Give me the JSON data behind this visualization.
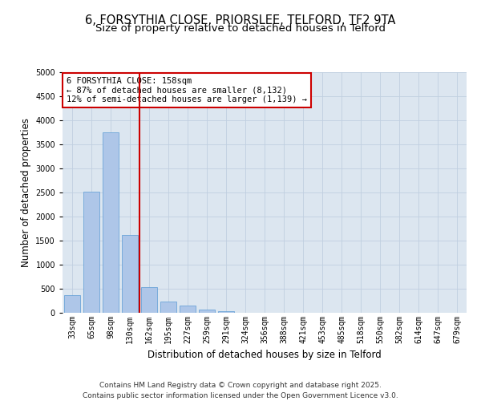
{
  "title_line1": "6, FORSYTHIA CLOSE, PRIORSLEE, TELFORD, TF2 9TA",
  "title_line2": "Size of property relative to detached houses in Telford",
  "xlabel": "Distribution of detached houses by size in Telford",
  "ylabel": "Number of detached properties",
  "categories": [
    "33sqm",
    "65sqm",
    "98sqm",
    "130sqm",
    "162sqm",
    "195sqm",
    "227sqm",
    "259sqm",
    "291sqm",
    "324sqm",
    "356sqm",
    "388sqm",
    "421sqm",
    "453sqm",
    "485sqm",
    "518sqm",
    "550sqm",
    "582sqm",
    "614sqm",
    "647sqm",
    "679sqm"
  ],
  "values": [
    370,
    2520,
    3750,
    1620,
    540,
    230,
    150,
    70,
    30,
    5,
    2,
    0,
    0,
    0,
    0,
    0,
    0,
    0,
    0,
    0,
    0
  ],
  "bar_color": "#aec6e8",
  "bar_edge_color": "#5b9bd5",
  "vline_color": "#cc0000",
  "annotation_text": "6 FORSYTHIA CLOSE: 158sqm\n← 87% of detached houses are smaller (8,132)\n12% of semi-detached houses are larger (1,139) →",
  "annotation_box_color": "#cc0000",
  "ylim": [
    0,
    5000
  ],
  "yticks": [
    0,
    500,
    1000,
    1500,
    2000,
    2500,
    3000,
    3500,
    4000,
    4500,
    5000
  ],
  "grid_color": "#c0cfe0",
  "bg_color": "#dce6f0",
  "footer_line1": "Contains HM Land Registry data © Crown copyright and database right 2025.",
  "footer_line2": "Contains public sector information licensed under the Open Government Licence v3.0.",
  "title_fontsize": 10.5,
  "subtitle_fontsize": 9.5,
  "tick_fontsize": 7,
  "label_fontsize": 8.5,
  "footer_fontsize": 6.5,
  "annot_fontsize": 7.5
}
